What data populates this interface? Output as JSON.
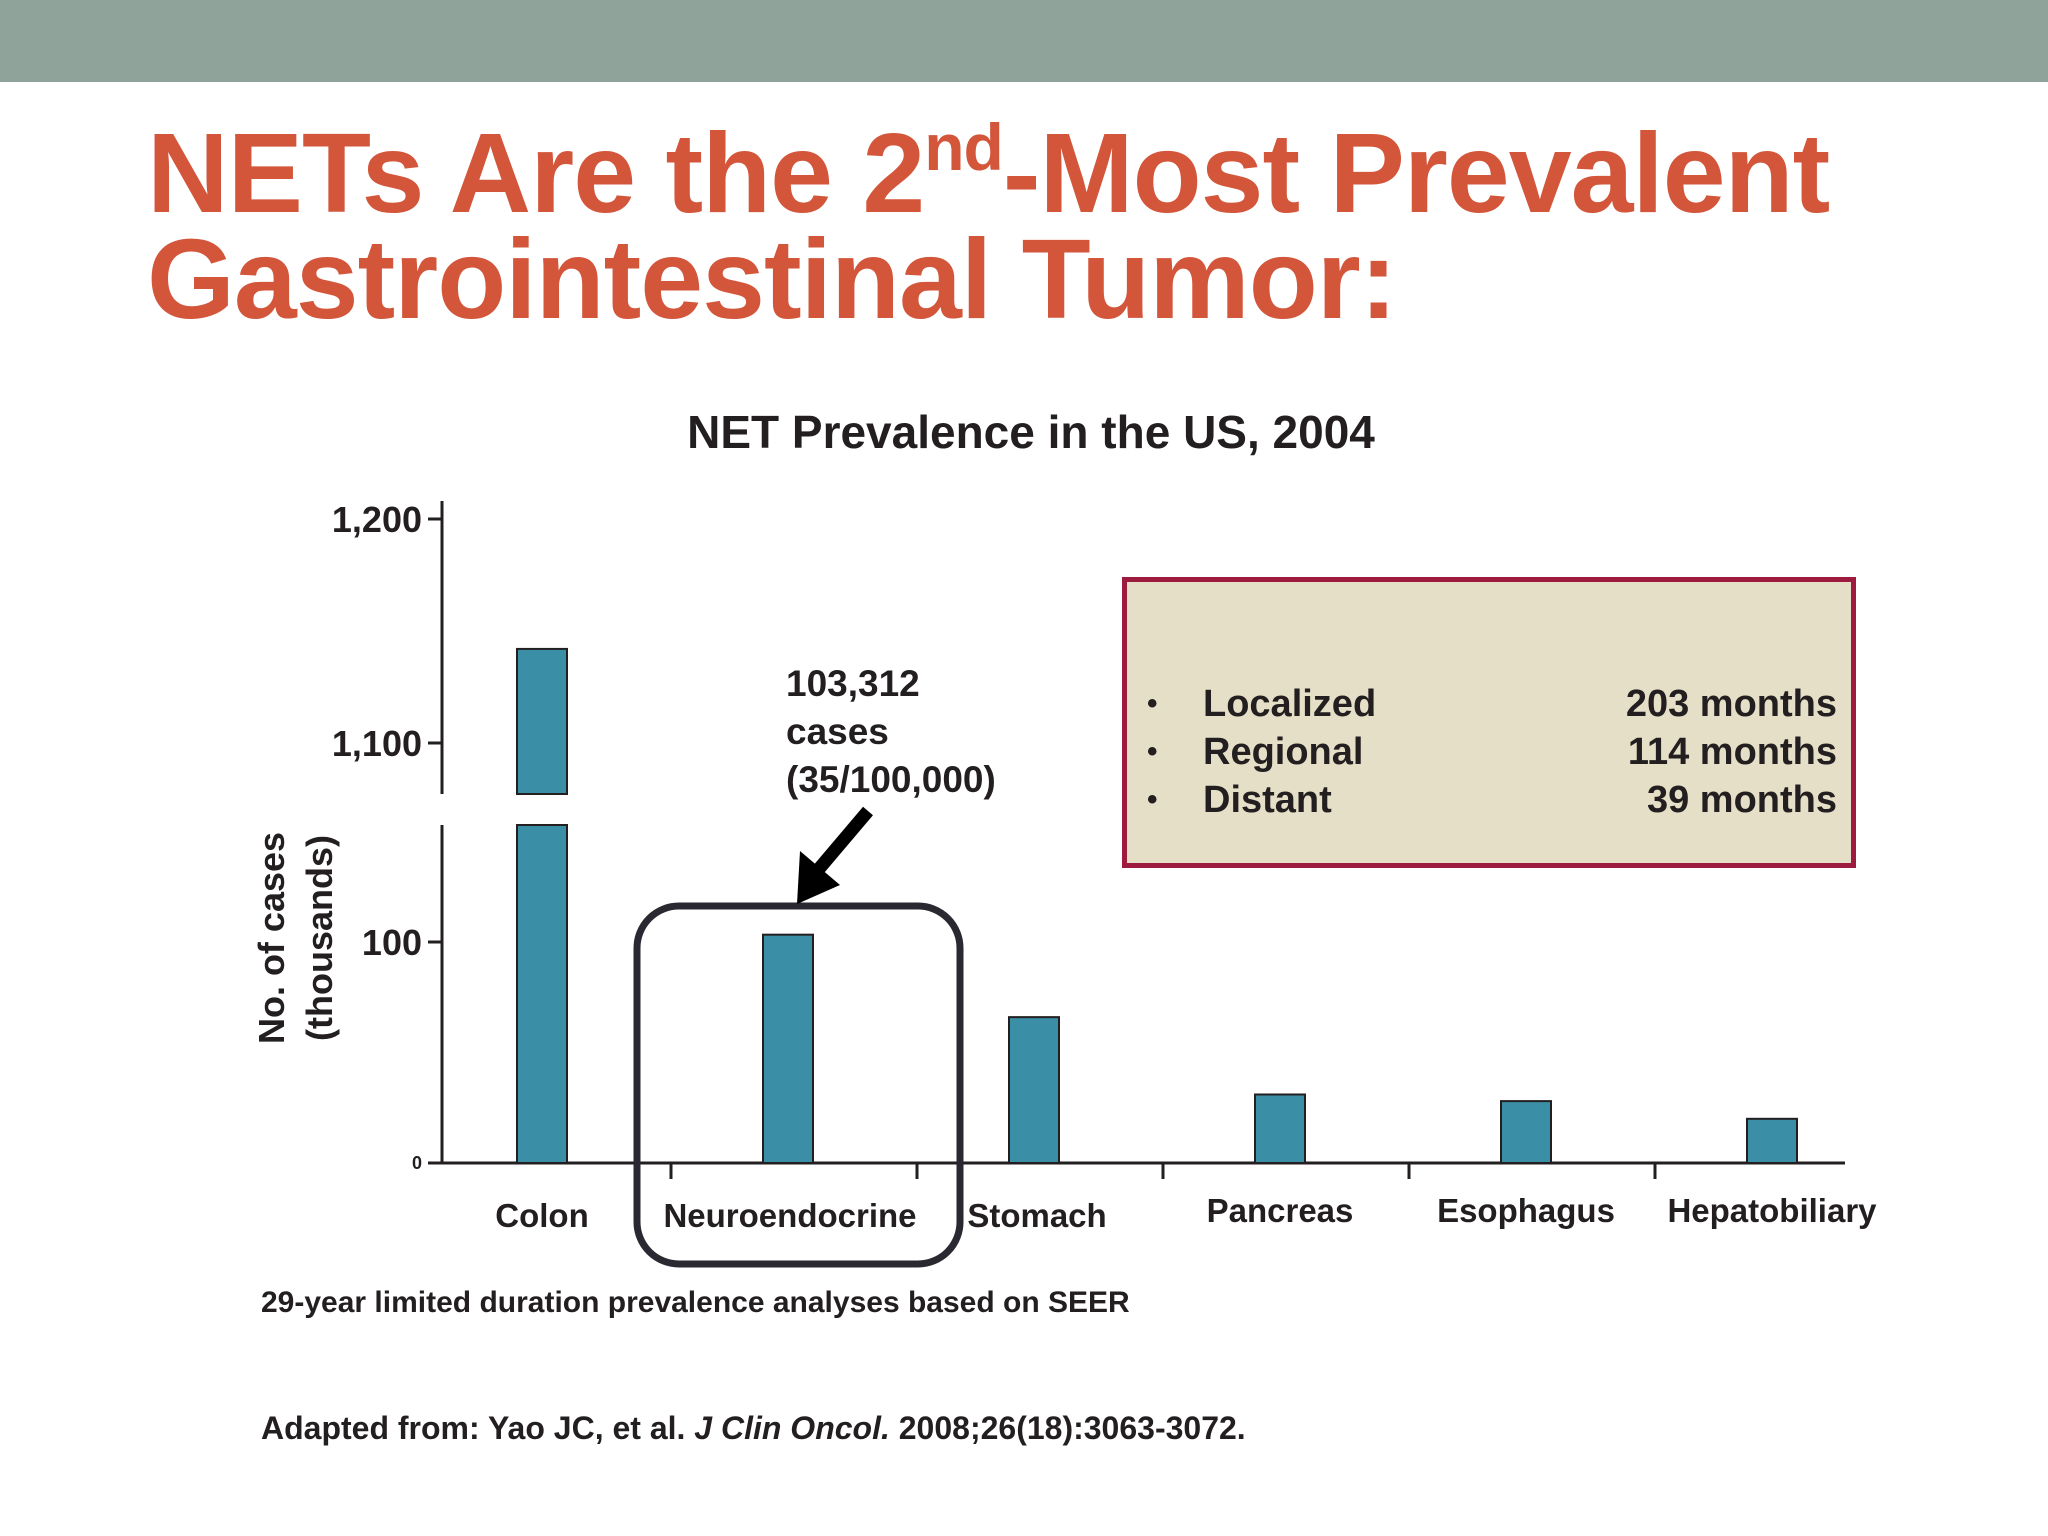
{
  "theme": {
    "band_color": "#8fa39a",
    "title_color": "#d3563b",
    "bar_color": "#3a8fa6",
    "box_border": "#9c1b3f",
    "box_fill": "#e6dfc7",
    "text_color": "#231f20"
  },
  "slide": {
    "title_part1": "NETs Are the 2",
    "title_sup": "nd",
    "title_part2": "-Most Prevalent Gastrointestinal Tumor:"
  },
  "chart_data": {
    "type": "bar",
    "title": "NET Prevalence in the US, 2004",
    "ylabel_line1": "No. of cases",
    "ylabel_line2": "(thousands)",
    "y_scale": "broken",
    "ylim": [
      0,
      1200
    ],
    "axis_break": [
      155,
      1075
    ],
    "yticks": [
      {
        "value": 0,
        "label": "0"
      },
      {
        "value": 100,
        "label": "100"
      },
      {
        "value": 1100,
        "label": "1,100"
      },
      {
        "value": 1200,
        "label": "1,200"
      }
    ],
    "categories": [
      "Colon",
      "Neuroendocrine",
      "Stomach",
      "Pancreas",
      "Esophagus",
      "Hepatobiliary"
    ],
    "values": [
      1142,
      103.312,
      66,
      31,
      28,
      20
    ],
    "grid": false,
    "highlight_category": "Neuroendocrine"
  },
  "annotation": {
    "line1": "103,312",
    "line2": "cases",
    "line3": "(35/100,000)"
  },
  "survival_box": {
    "rows": [
      {
        "bullet": "•",
        "stage": "Localized",
        "months": "203 months"
      },
      {
        "bullet": "•",
        "stage": "Regional",
        "months": "114 months"
      },
      {
        "bullet": "•",
        "stage": "Distant",
        "months": "39 months"
      }
    ]
  },
  "footnote": "29-year limited duration prevalence analyses based on SEER",
  "citation": {
    "prefix": "Adapted from: Yao JC, et al. ",
    "journal": "J Clin Oncol.",
    "suffix": " 2008;26(18):3063-3072."
  }
}
